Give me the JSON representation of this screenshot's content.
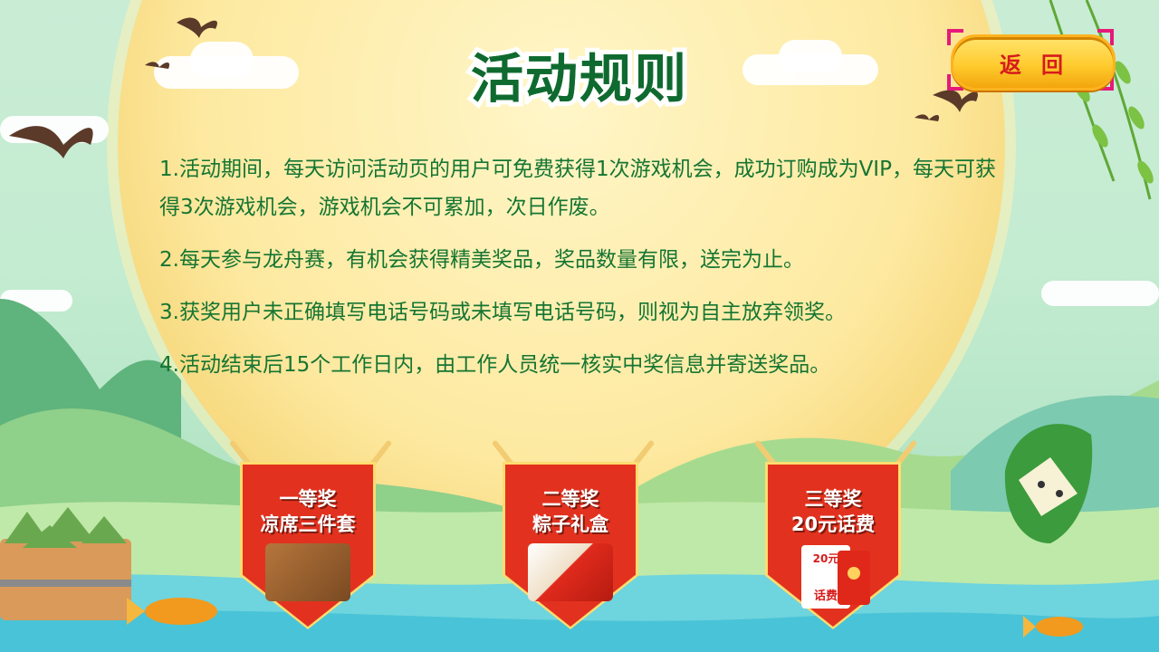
{
  "title": "活动规则",
  "back_button": {
    "label": "返回"
  },
  "rules": [
    "1.活动期间，每天访问活动页的用户可免费获得1次游戏机会，成功订购成为VIP，每天可获得3次游戏机会，游戏机会不可累加，次日作废。",
    "2.每天参与龙舟赛，有机会获得精美奖品，奖品数量有限，送完为止。",
    "3.获奖用户未正确填写电话号码或未填写电话号码，则视为自主放弃领奖。",
    "4.活动结束后15个工作日内，由工作人员统一核实中奖信息并寄送奖品。"
  ],
  "prizes": [
    {
      "tier": "一等奖",
      "name": "凉席三件套"
    },
    {
      "tier": "二等奖",
      "name": "粽子礼盒"
    },
    {
      "tier": "三等奖",
      "name": "20元话费",
      "card_amount": "20元",
      "card_label": "话费"
    }
  ],
  "colors": {
    "rule_text": "#157532",
    "title": "#0f6a2f",
    "pennant": "#cf2614",
    "button": "#ffcc2f",
    "button_text": "#d61b1b"
  }
}
